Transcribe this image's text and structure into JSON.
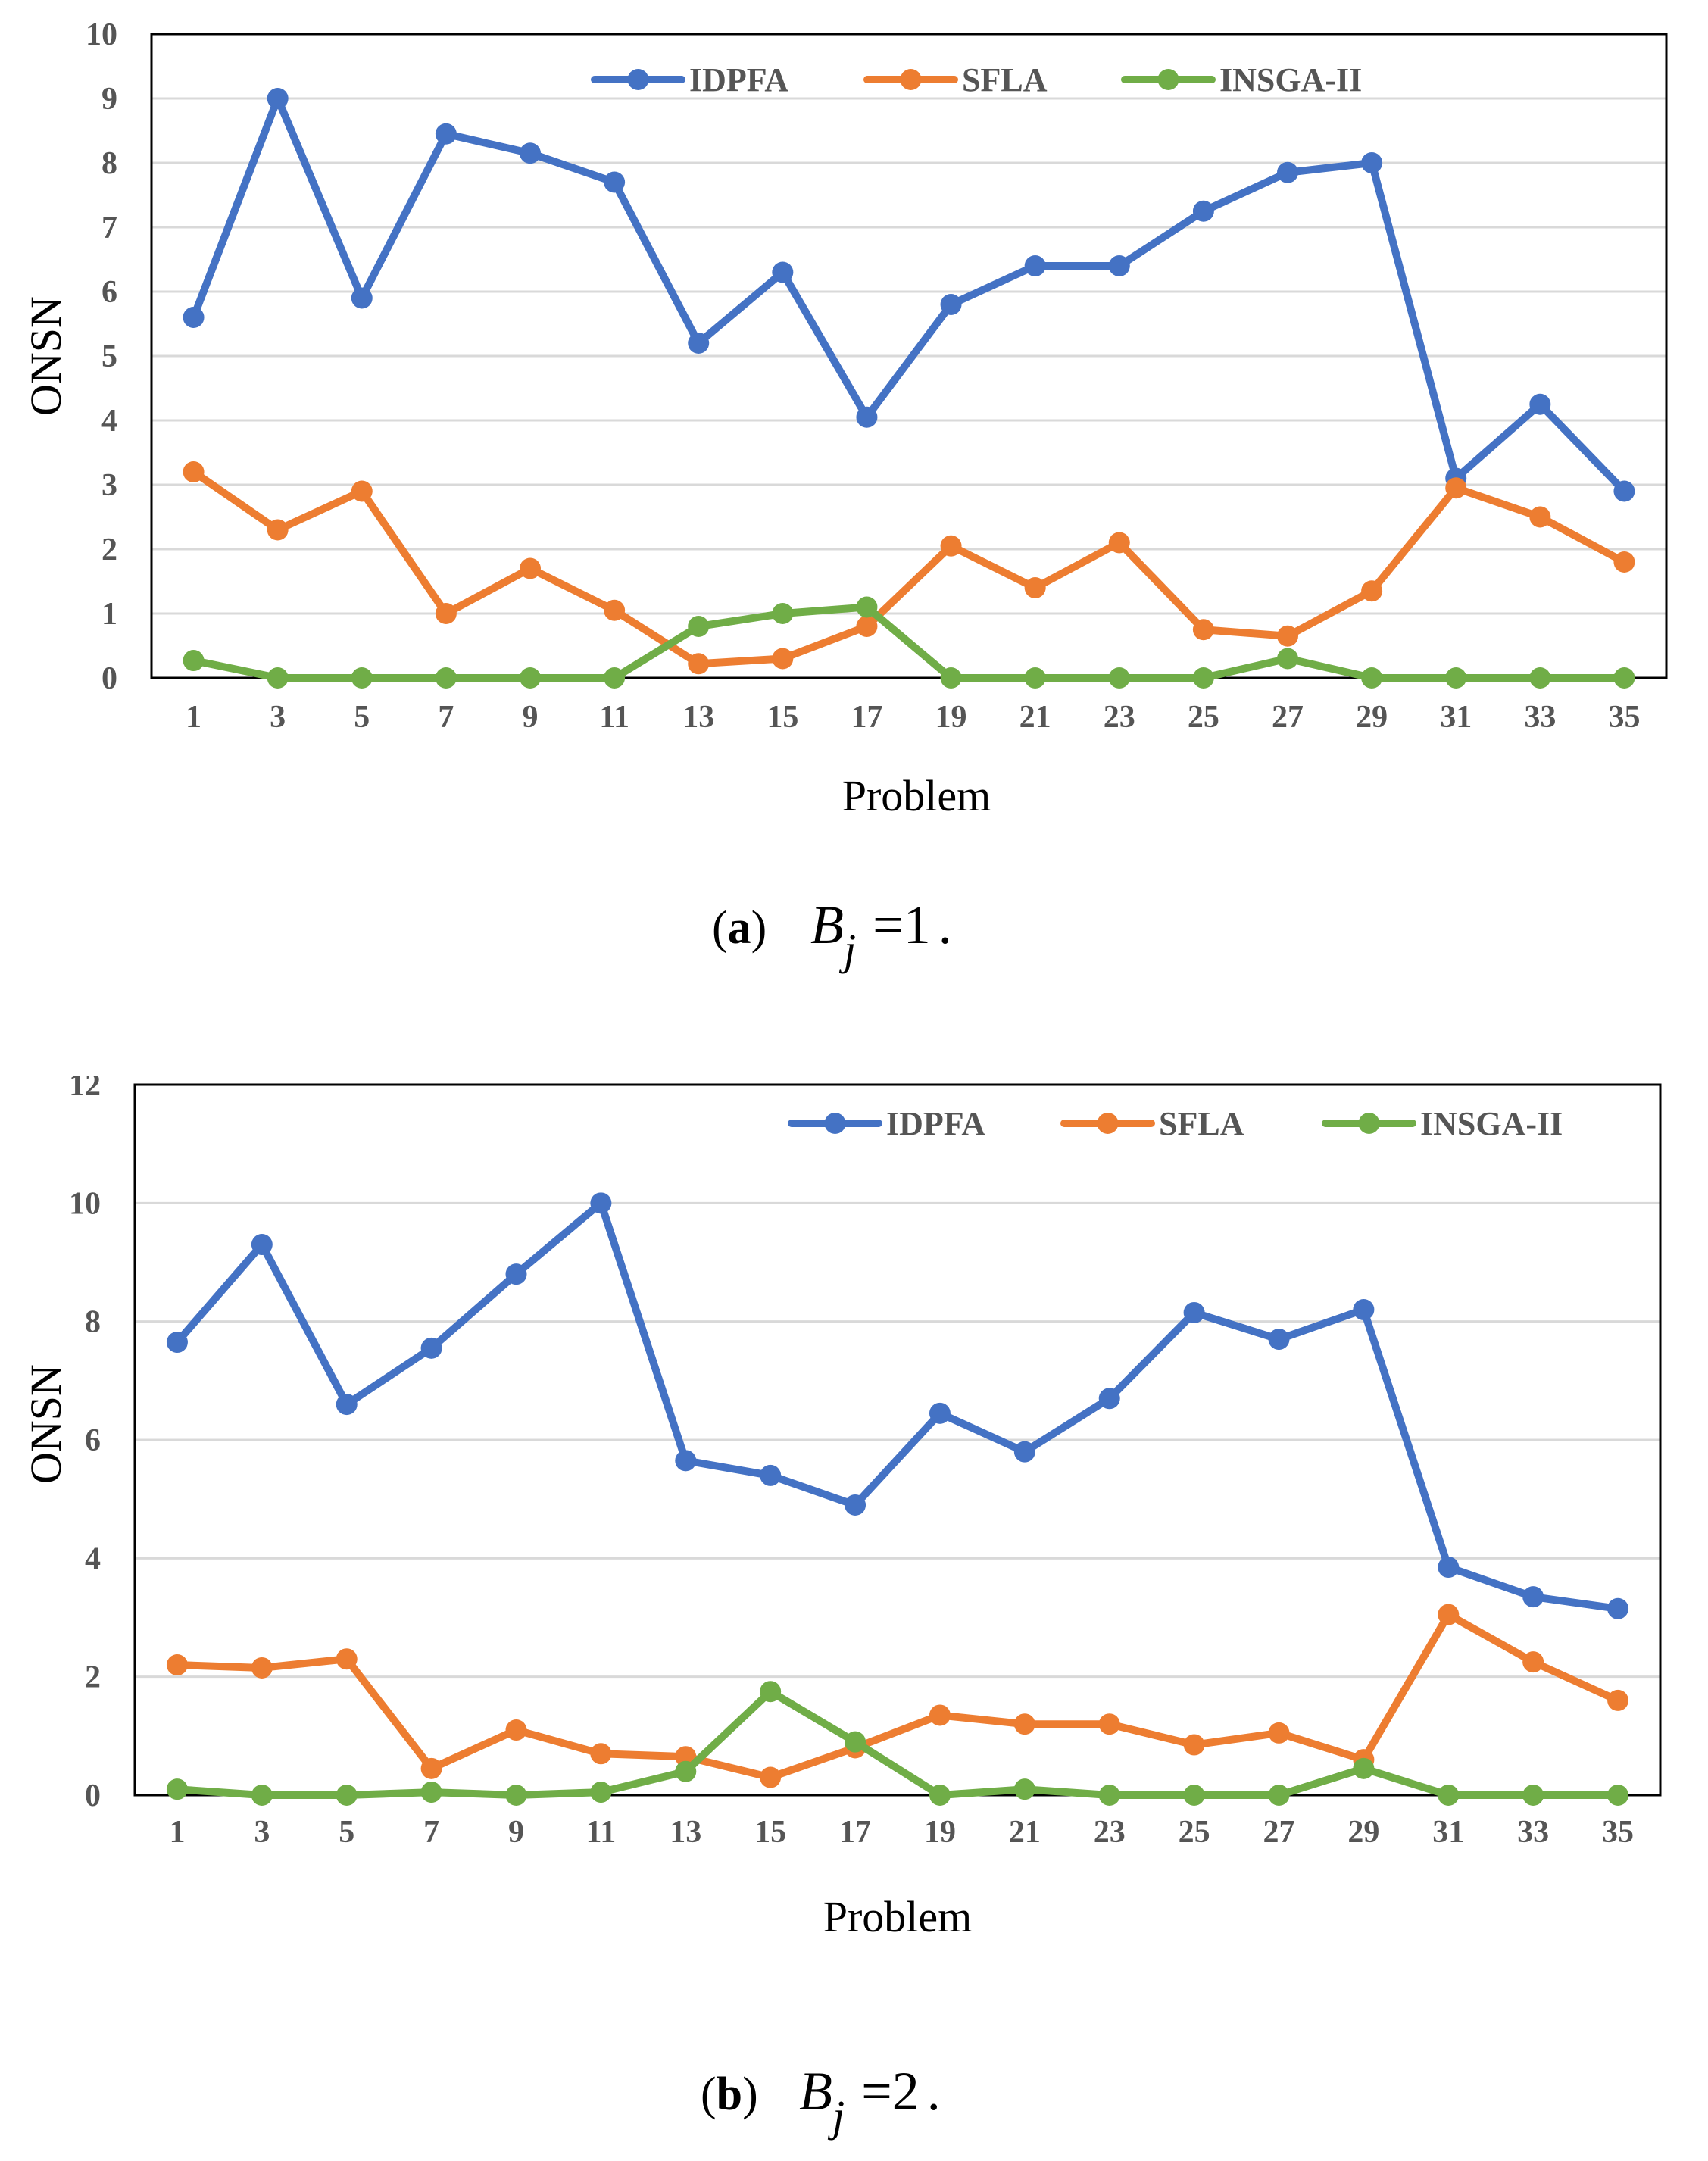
{
  "chart_data": [
    {
      "type": "line",
      "panel": "a",
      "ylabel": "ONSN",
      "xlabel": "Problem",
      "ylim": [
        0,
        10
      ],
      "yticks": [
        "0",
        "1",
        "2",
        "3",
        "4",
        "5",
        "6",
        "7",
        "8",
        "9",
        "10"
      ],
      "categories": [
        "1",
        "3",
        "5",
        "7",
        "9",
        "11",
        "13",
        "15",
        "17",
        "19",
        "21",
        "23",
        "25",
        "27",
        "29",
        "31",
        "33",
        "35"
      ],
      "legend_position": "top",
      "series": [
        {
          "name": "IDPFA",
          "color": "#4472C4",
          "values": [
            5.6,
            9.0,
            5.9,
            8.45,
            8.15,
            7.7,
            5.2,
            6.3,
            4.05,
            5.8,
            6.4,
            6.4,
            7.25,
            7.85,
            8.0,
            3.1,
            4.25,
            2.9
          ]
        },
        {
          "name": "SFLA",
          "color": "#ED7D31",
          "values": [
            3.2,
            2.3,
            2.9,
            1.0,
            1.7,
            1.05,
            0.22,
            0.3,
            0.8,
            2.05,
            1.4,
            2.1,
            0.75,
            0.65,
            1.35,
            2.95,
            2.5,
            1.8
          ]
        },
        {
          "name": "INSGA-II",
          "color": "#70AD47",
          "values": [
            0.27,
            0.0,
            0.0,
            0.0,
            0.0,
            0.0,
            0.8,
            1.0,
            1.1,
            0.0,
            0.0,
            0.0,
            0.0,
            0.3,
            0.0,
            0.0,
            0.0,
            0.0
          ]
        }
      ],
      "caption": {
        "label": "(a)",
        "math_symbol": "B",
        "math_subscript": "j",
        "math_rest": "=1",
        "end": "."
      }
    },
    {
      "type": "line",
      "panel": "b",
      "ylabel": "ONSN",
      "xlabel": "Problem",
      "ylim": [
        0,
        12
      ],
      "yticks": [
        "0",
        "2",
        "4",
        "6",
        "8",
        "10",
        "12"
      ],
      "categories": [
        "1",
        "3",
        "5",
        "7",
        "9",
        "11",
        "13",
        "15",
        "17",
        "19",
        "21",
        "23",
        "25",
        "27",
        "29",
        "31",
        "33",
        "35"
      ],
      "legend_position": "top-right",
      "series": [
        {
          "name": "IDPFA",
          "color": "#4472C4",
          "values": [
            7.65,
            9.3,
            6.6,
            7.55,
            8.8,
            10.0,
            5.65,
            5.4,
            4.9,
            6.45,
            5.8,
            6.7,
            8.15,
            7.7,
            8.2,
            3.85,
            3.35,
            3.15
          ]
        },
        {
          "name": "SFLA",
          "color": "#ED7D31",
          "values": [
            2.2,
            2.15,
            2.3,
            0.45,
            1.1,
            0.7,
            0.65,
            0.3,
            0.8,
            1.35,
            1.2,
            1.2,
            0.85,
            1.05,
            0.6,
            3.05,
            2.25,
            1.6
          ]
        },
        {
          "name": "INSGA-II",
          "color": "#70AD47",
          "values": [
            0.1,
            0.0,
            0.0,
            0.05,
            0.0,
            0.05,
            0.4,
            1.75,
            0.9,
            0.0,
            0.1,
            0.0,
            0.0,
            0.0,
            0.45,
            0.0,
            0.0,
            0.0
          ]
        }
      ],
      "caption": {
        "label": "(b)",
        "math_symbol": "B",
        "math_subscript": "j",
        "math_rest": "=2",
        "end": "."
      }
    }
  ]
}
